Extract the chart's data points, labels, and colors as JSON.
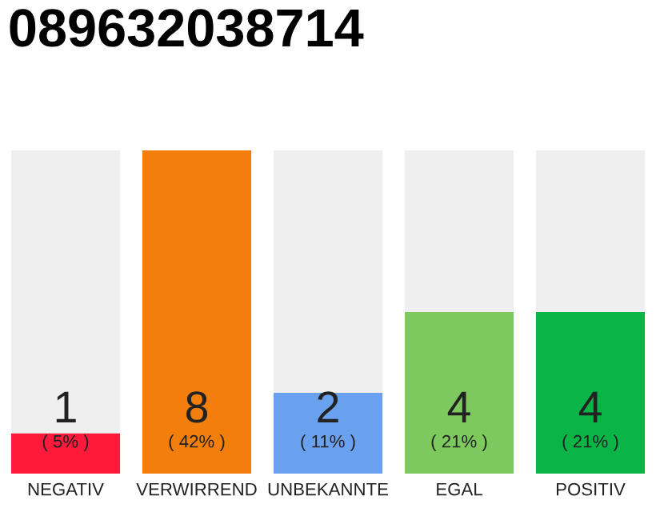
{
  "chart_data": {
    "type": "bar",
    "title": "089632038714",
    "categories": [
      "NEGATIV",
      "VERWIRREND",
      "UNBEKANNTE",
      "EGAL",
      "POSITIV"
    ],
    "stacked": true,
    "data_labels": true,
    "grid": false,
    "legend": false,
    "tick_labels": "x",
    "ylim": [
      0,
      8
    ],
    "series": [
      {
        "color": "#ff1a3c",
        "colors": [
          "#ff1a3c",
          "#f27f0c",
          "#6aa1ee",
          "#7dc95e",
          "#0ab446"
        ],
        "values": [
          1,
          8,
          2,
          4,
          4
        ]
      },
      {
        "color": "#efefef",
        "values": [
          7,
          0,
          6,
          4,
          4
        ],
        "data_labels": false
      }
    ],
    "annotations": [
      "( 5% )",
      "( 42% )",
      "( 11% )",
      "( 21% )",
      "( 21% )"
    ]
  }
}
